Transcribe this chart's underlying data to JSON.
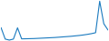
{
  "y_values": [
    14000,
    3000,
    2000,
    3000,
    14000,
    3200,
    3300,
    3400,
    3500,
    3700,
    3900,
    4100,
    4300,
    4500,
    4800,
    5100,
    5400,
    5700,
    6100,
    6500,
    7000,
    7600,
    8300,
    9200,
    40000,
    18000,
    12000
  ],
  "line_color": "#1a7abf",
  "background_color": "#ffffff",
  "linewidth": 0.8,
  "figsize": [
    1.2,
    0.45
  ],
  "dpi": 100
}
